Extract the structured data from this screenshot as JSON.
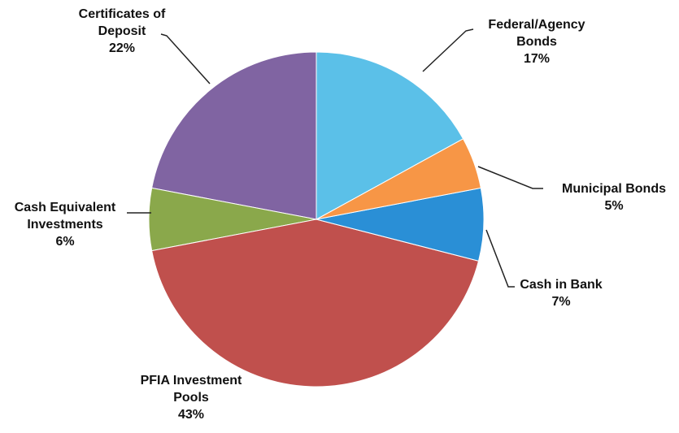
{
  "chart_data": {
    "type": "pie",
    "categories": [
      "Federal/Agency Bonds",
      "Municipal Bonds",
      "Cash in Bank",
      "PFIA Investment Pools",
      "Cash Equivalent Investments",
      "Certificates of Deposit"
    ],
    "values": [
      17,
      5,
      7,
      43,
      6,
      22
    ],
    "value_labels": [
      "17%",
      "5%",
      "7%",
      "43%",
      "6%",
      "22%"
    ],
    "colors": [
      "#5bc0e8",
      "#f79646",
      "#2a8fd6",
      "#c0504d",
      "#8aa84b",
      "#8064a2"
    ]
  }
}
